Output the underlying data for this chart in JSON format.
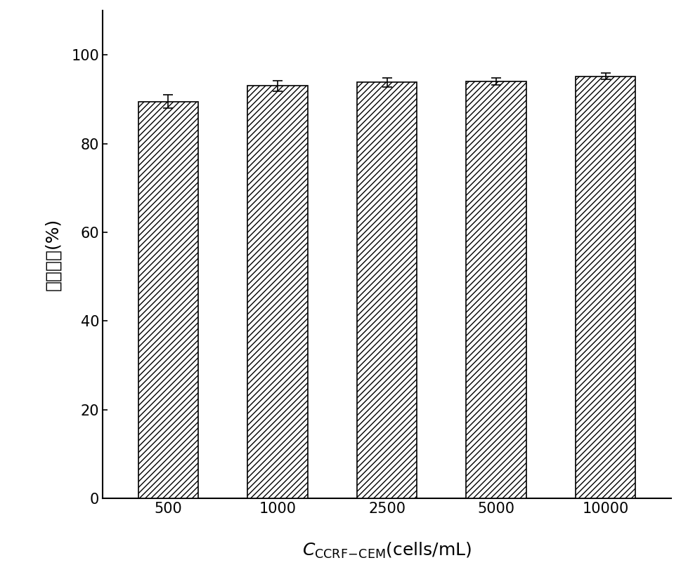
{
  "categories": [
    "500",
    "1000",
    "2500",
    "5000",
    "10000"
  ],
  "values": [
    89.5,
    93.0,
    93.8,
    94.0,
    95.2
  ],
  "errors": [
    1.5,
    1.2,
    1.0,
    0.8,
    0.7
  ],
  "bar_color": "#ffffff",
  "bar_edgecolor": "#000000",
  "hatch_pattern": "////",
  "ylabel": "捕获效率(%)",
  "ylim": [
    0,
    110
  ],
  "yticks": [
    0,
    20,
    40,
    60,
    80,
    100
  ],
  "background_color": "#ffffff",
  "bar_width": 0.55,
  "axis_fontsize": 16,
  "tick_fontsize": 15
}
